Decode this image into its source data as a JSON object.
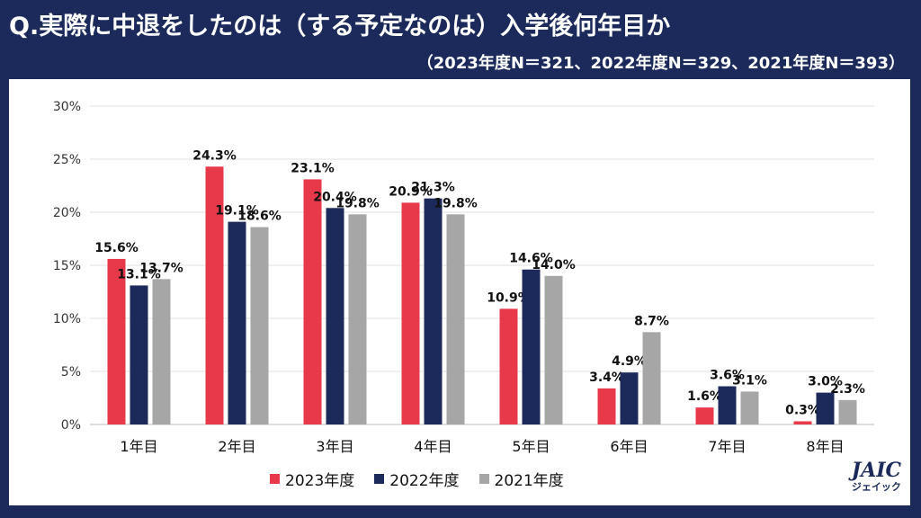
{
  "header": {
    "title": "Q.実際に中退をしたのは（する予定なのは）入学後何年目か",
    "subtitle": "（2023年度N＝321、2022年度N＝329、2021年度N＝393）"
  },
  "logo": {
    "main": "JAIC",
    "sub": "ジェイック"
  },
  "chart_data": {
    "type": "bar",
    "categories": [
      "1年目",
      "2年目",
      "3年目",
      "4年目",
      "5年目",
      "6年目",
      "7年目",
      "8年目"
    ],
    "series": [
      {
        "name": "2023年度",
        "color": "#e8394a",
        "values": [
          15.6,
          24.3,
          23.1,
          20.9,
          10.9,
          3.4,
          1.6,
          0.3
        ]
      },
      {
        "name": "2022年度",
        "color": "#1b2a5a",
        "values": [
          13.1,
          19.1,
          20.4,
          21.3,
          14.6,
          4.9,
          3.6,
          3.0
        ]
      },
      {
        "name": "2021年度",
        "color": "#a6a6a6",
        "values": [
          13.7,
          18.6,
          19.8,
          19.8,
          14.0,
          8.7,
          3.1,
          2.3
        ]
      }
    ],
    "y_ticks": [
      "0%",
      "5%",
      "10%",
      "15%",
      "20%",
      "25%",
      "30%"
    ],
    "ylim": [
      0,
      30
    ],
    "value_suffix": "%",
    "grid": true,
    "legend_position": "bottom"
  }
}
